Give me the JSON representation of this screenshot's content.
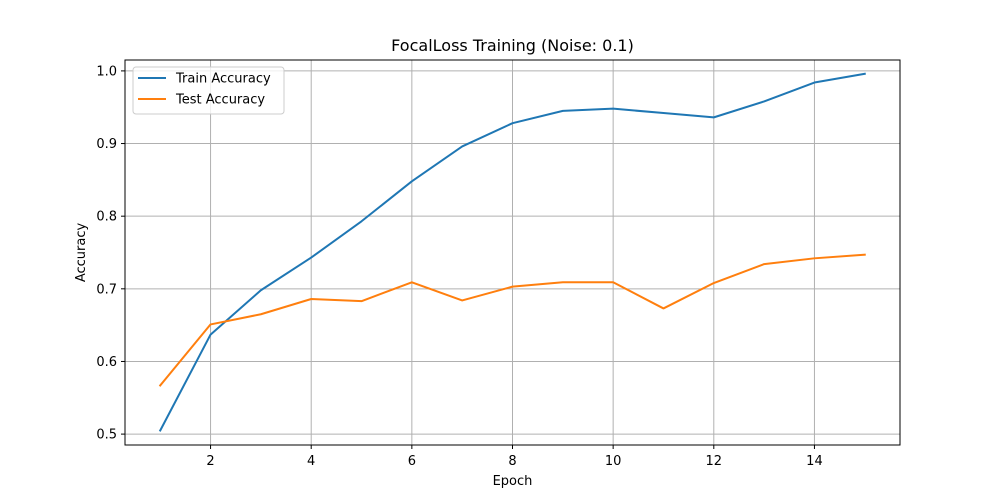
{
  "chart_data": {
    "type": "line",
    "title": "FocalLoss Training (Noise: 0.1)",
    "xlabel": "Epoch",
    "ylabel": "Accuracy",
    "x": [
      1,
      2,
      3,
      4,
      5,
      6,
      7,
      8,
      9,
      10,
      11,
      12,
      13,
      14,
      15
    ],
    "xlim": [
      0.3,
      15.7
    ],
    "ylim": [
      0.485,
      1.015
    ],
    "xticks": [
      2,
      4,
      6,
      8,
      10,
      12,
      14
    ],
    "yticks": [
      0.5,
      0.6,
      0.7,
      0.8,
      0.9,
      1.0
    ],
    "xtick_labels": [
      "2",
      "4",
      "6",
      "8",
      "10",
      "12",
      "14"
    ],
    "ytick_labels": [
      "0.5",
      "0.6",
      "0.7",
      "0.8",
      "0.9",
      "1.0"
    ],
    "grid": true,
    "legend_position": "upper-left",
    "series": [
      {
        "name": "Train Accuracy",
        "color": "#1f77b4",
        "values": [
          0.505,
          0.637,
          0.698,
          0.743,
          0.793,
          0.848,
          0.896,
          0.928,
          0.945,
          0.948,
          0.942,
          0.936,
          0.958,
          0.984,
          0.996
        ]
      },
      {
        "name": "Test Accuracy",
        "color": "#ff7f0e",
        "values": [
          0.567,
          0.651,
          0.665,
          0.686,
          0.683,
          0.709,
          0.684,
          0.703,
          0.709,
          0.709,
          0.673,
          0.708,
          0.734,
          0.742,
          0.747
        ]
      }
    ]
  }
}
